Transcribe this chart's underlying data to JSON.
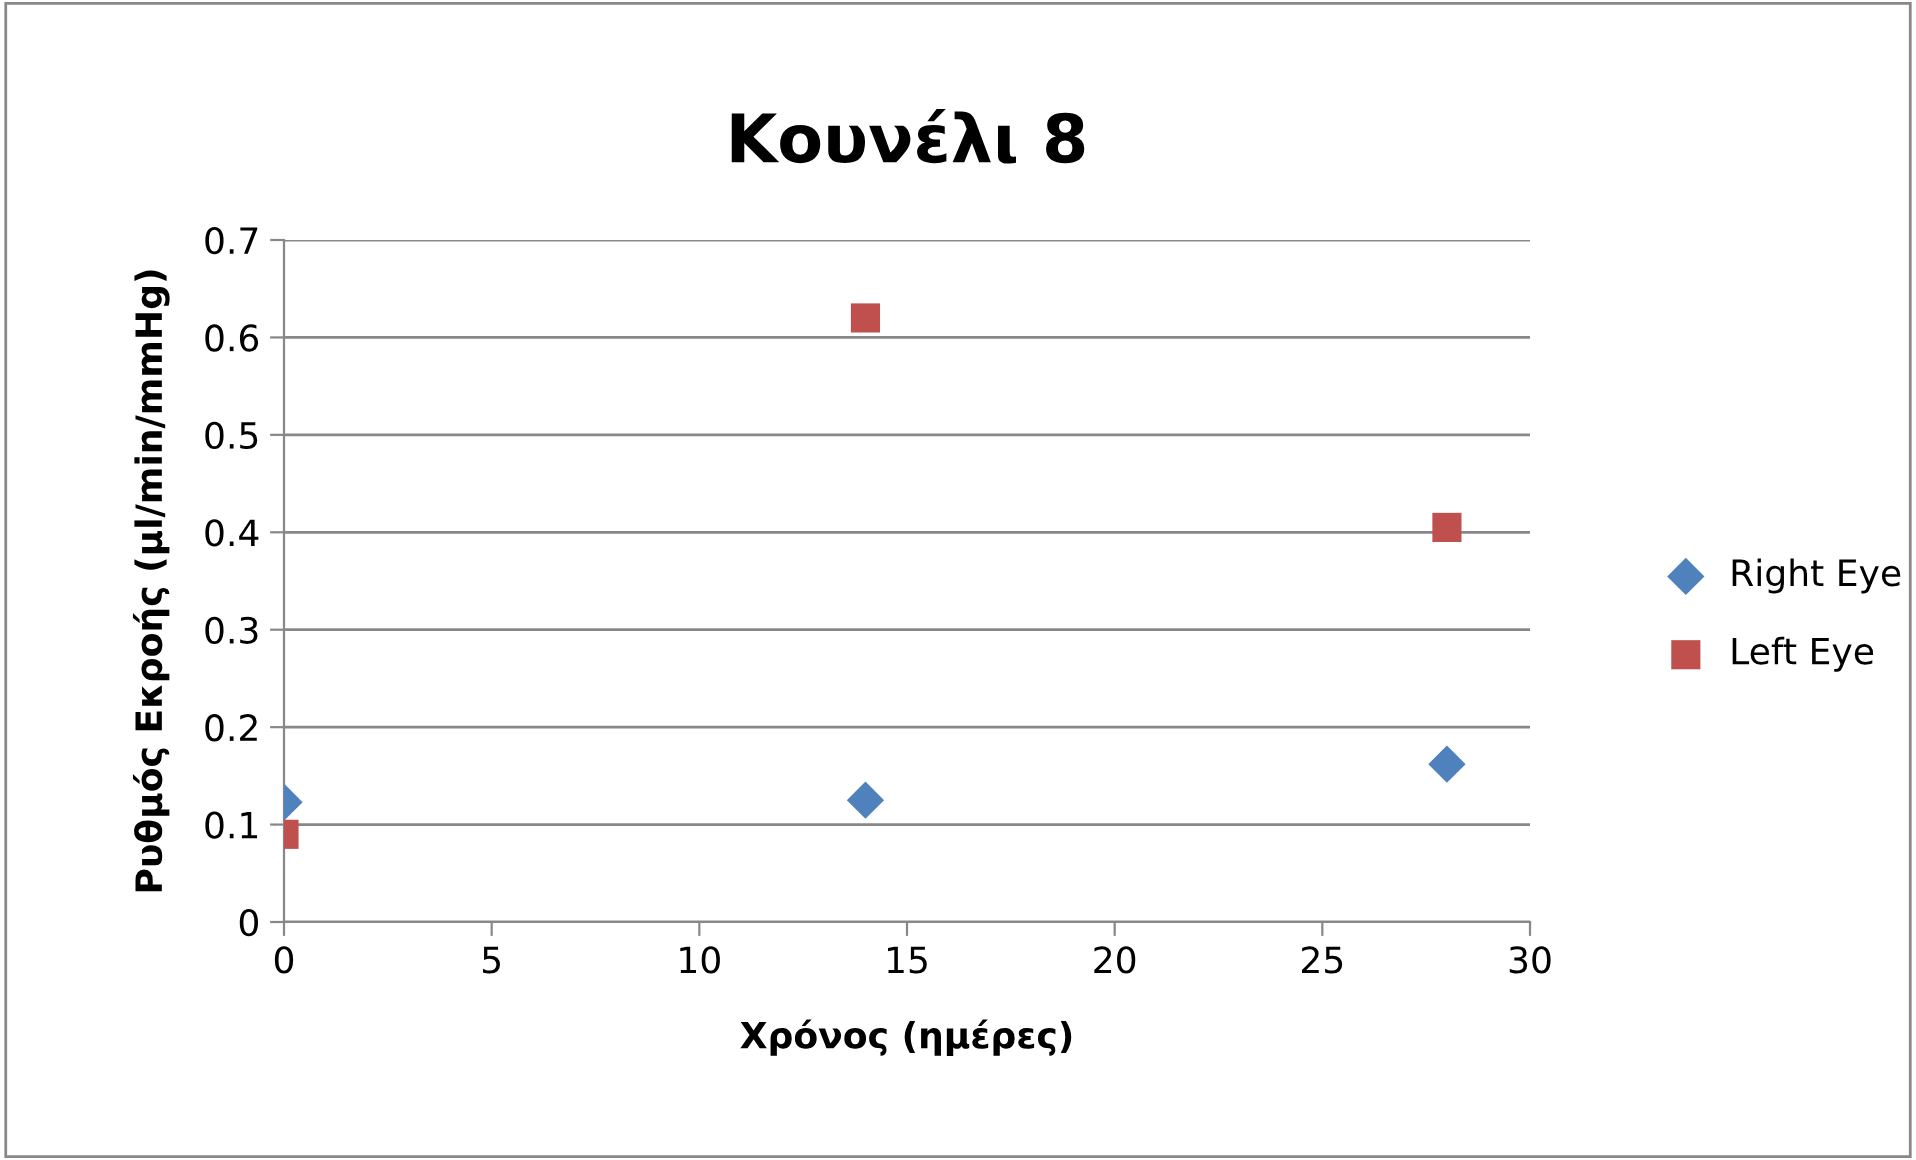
{
  "chart_data": {
    "type": "scatter",
    "title": "Κουνέλι 8",
    "xlabel": "Χρόνος (ημέρες)",
    "ylabel": "Ρυθμός Εκροής (μl/min/mmHg)",
    "x": [
      0,
      14,
      28
    ],
    "series": [
      {
        "name": "Right Eye",
        "color": "#4f81bd",
        "marker": "diamond",
        "values": [
          0.123,
          0.125,
          0.162
        ]
      },
      {
        "name": "Left Eye",
        "color": "#c0504d",
        "marker": "square",
        "values": [
          0.09,
          0.62,
          0.405
        ]
      }
    ],
    "xlim": [
      0,
      30
    ],
    "xticks": [
      0,
      5,
      10,
      15,
      20,
      25,
      30
    ],
    "ylim": [
      0,
      0.7
    ],
    "yticks": [
      0,
      0.1,
      0.2,
      0.3,
      0.4,
      0.5,
      0.6,
      0.7
    ],
    "grid": "y",
    "legend": "right"
  }
}
